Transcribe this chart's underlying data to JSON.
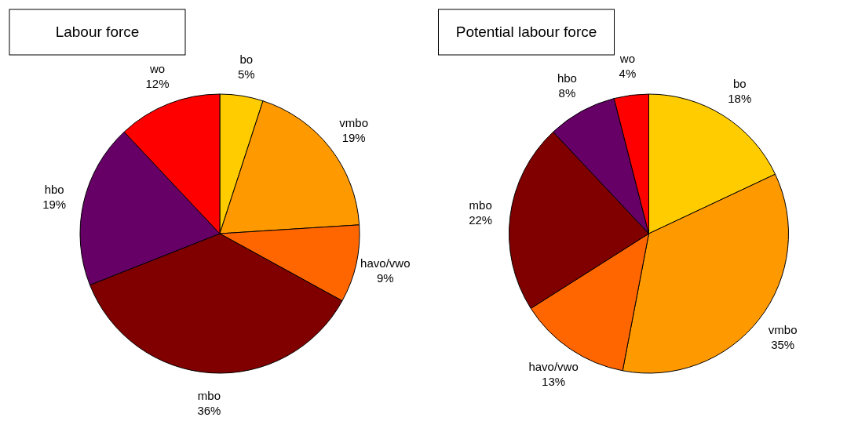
{
  "chart_data": [
    {
      "type": "pie",
      "title": "Labour force",
      "categories": [
        "bo",
        "vmbo",
        "havo/vwo",
        "mbo",
        "hbo",
        "wo"
      ],
      "values": [
        5,
        19,
        9,
        36,
        19,
        12
      ],
      "value_labels": [
        "5%",
        "19%",
        "9%",
        "36%",
        "19%",
        "12%"
      ],
      "colors": [
        "#ffcc00",
        "#ff9900",
        "#ff6600",
        "#800000",
        "#660066",
        "#ff0000"
      ]
    },
    {
      "type": "pie",
      "title": "Potential labour force",
      "categories": [
        "bo",
        "vmbo",
        "havo/vwo",
        "mbo",
        "hbo",
        "wo"
      ],
      "values": [
        18,
        35,
        13,
        22,
        8,
        4
      ],
      "value_labels": [
        "18%",
        "35%",
        "13%",
        "22%",
        "8%",
        "4%"
      ],
      "colors": [
        "#ffcc00",
        "#ff9900",
        "#ff6600",
        "#800000",
        "#660066",
        "#ff0000"
      ]
    }
  ]
}
